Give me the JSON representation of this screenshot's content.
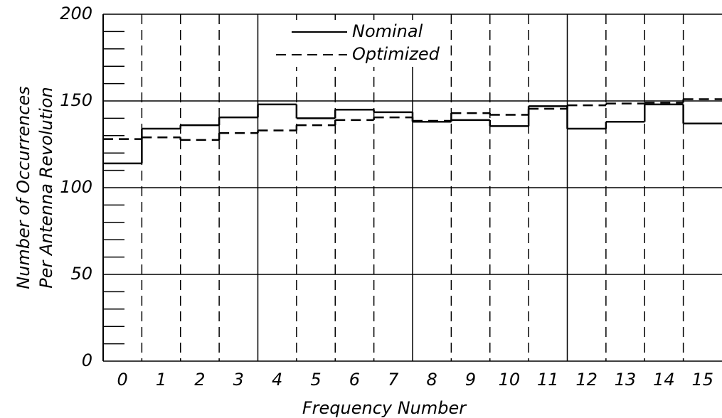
{
  "chart_data": {
    "type": "step",
    "xlabel": "Frequency Number",
    "ylabel": [
      "Number of Occurrences",
      "Per Antenna Revolution"
    ],
    "categories": [
      "0",
      "1",
      "2",
      "3",
      "4",
      "5",
      "6",
      "7",
      "8",
      "9",
      "10",
      "11",
      "12",
      "13",
      "14",
      "15"
    ],
    "series": [
      {
        "name": "Nominal",
        "color": "#000000",
        "dash": false,
        "values": [
          114,
          134,
          136,
          140.5,
          148,
          140,
          145,
          143.5,
          138,
          139,
          135.5,
          147,
          134,
          138,
          148,
          137
        ]
      },
      {
        "name": "Optimized",
        "color": "#000000",
        "dash": true,
        "values": [
          128,
          129,
          127.5,
          131.5,
          133,
          136,
          139,
          140.5,
          138.5,
          143,
          142,
          145.5,
          147.5,
          148.5,
          149,
          151
        ]
      }
    ],
    "ylim": [
      0,
      200
    ],
    "yticks": [
      0,
      50,
      100,
      150,
      200
    ],
    "yminorticks": [
      10,
      20,
      30,
      40,
      60,
      70,
      80,
      90,
      110,
      120,
      130,
      140,
      160,
      170,
      180,
      190
    ],
    "grid": true,
    "legend": "top"
  }
}
